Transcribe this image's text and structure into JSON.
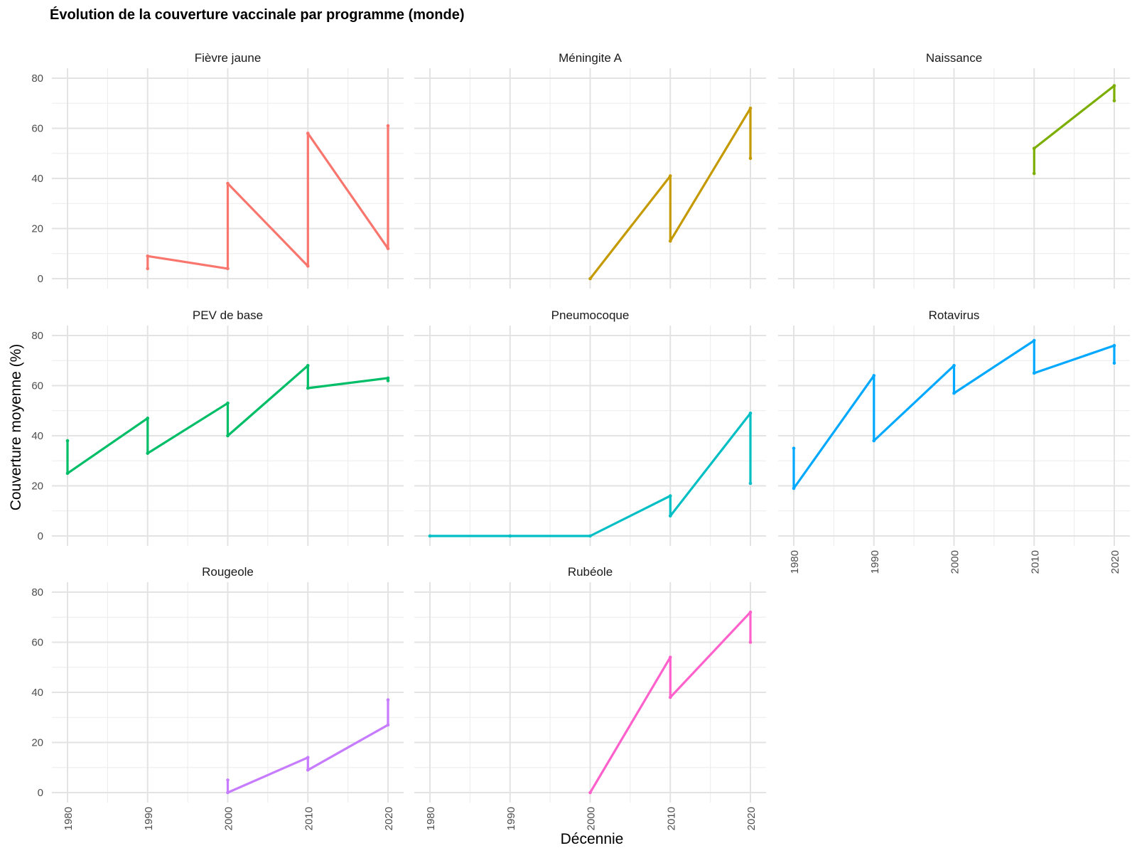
{
  "chart_data": {
    "type": "line",
    "title": "Évolution de la couverture vaccinale par programme (monde)",
    "xlabel": "Décennie",
    "ylabel": "Couverture moyenne (%)",
    "xlim": [
      1980,
      2020
    ],
    "ylim": [
      0,
      80
    ],
    "x_ticks": [
      "1980",
      "1990",
      "2000",
      "2010",
      "2020"
    ],
    "y_ticks": [
      "0",
      "20",
      "40",
      "60",
      "80"
    ],
    "grid": true,
    "legend": "none",
    "facets": [
      {
        "name": "Fièvre jaune",
        "color": "#F8766D",
        "points": [
          [
            1990,
            4
          ],
          [
            1990,
            9
          ],
          [
            2000,
            4
          ],
          [
            2000,
            38
          ],
          [
            2010,
            5
          ],
          [
            2010,
            58
          ],
          [
            2020,
            12
          ],
          [
            2020,
            61
          ]
        ]
      },
      {
        "name": "Méningite A",
        "color": "#C49A00",
        "points": [
          [
            2000,
            0
          ],
          [
            2010,
            41
          ],
          [
            2010,
            15
          ],
          [
            2020,
            68
          ],
          [
            2020,
            48
          ]
        ]
      },
      {
        "name": "Naissance",
        "color": "#7CAE00",
        "points": [
          [
            2010,
            42
          ],
          [
            2010,
            52
          ],
          [
            2020,
            77
          ],
          [
            2020,
            71
          ]
        ]
      },
      {
        "name": "PEV de base",
        "color": "#00BE67",
        "points": [
          [
            1980,
            38
          ],
          [
            1980,
            25
          ],
          [
            1990,
            47
          ],
          [
            1990,
            33
          ],
          [
            2000,
            53
          ],
          [
            2000,
            40
          ],
          [
            2010,
            68
          ],
          [
            2010,
            59
          ],
          [
            2020,
            63
          ],
          [
            2020,
            62
          ]
        ]
      },
      {
        "name": "Pneumocoque",
        "color": "#00BFC4",
        "points": [
          [
            1980,
            0
          ],
          [
            1990,
            0
          ],
          [
            2000,
            0
          ],
          [
            2010,
            16
          ],
          [
            2010,
            8
          ],
          [
            2020,
            49
          ],
          [
            2020,
            21
          ]
        ]
      },
      {
        "name": "Rotavirus",
        "color": "#00A9FF",
        "points": [
          [
            1980,
            35
          ],
          [
            1980,
            19
          ],
          [
            1990,
            64
          ],
          [
            1990,
            38
          ],
          [
            2000,
            68
          ],
          [
            2000,
            57
          ],
          [
            2010,
            78
          ],
          [
            2010,
            65
          ],
          [
            2020,
            76
          ],
          [
            2020,
            69
          ]
        ]
      },
      {
        "name": "Rougeole",
        "color": "#C77CFF",
        "points": [
          [
            2000,
            5
          ],
          [
            2000,
            0
          ],
          [
            2010,
            14
          ],
          [
            2010,
            9
          ],
          [
            2020,
            27
          ],
          [
            2020,
            37
          ]
        ]
      },
      {
        "name": "Rubéole",
        "color": "#FF61CC",
        "points": [
          [
            2000,
            0
          ],
          [
            2010,
            54
          ],
          [
            2010,
            38
          ],
          [
            2020,
            72
          ],
          [
            2020,
            60
          ]
        ]
      }
    ]
  }
}
